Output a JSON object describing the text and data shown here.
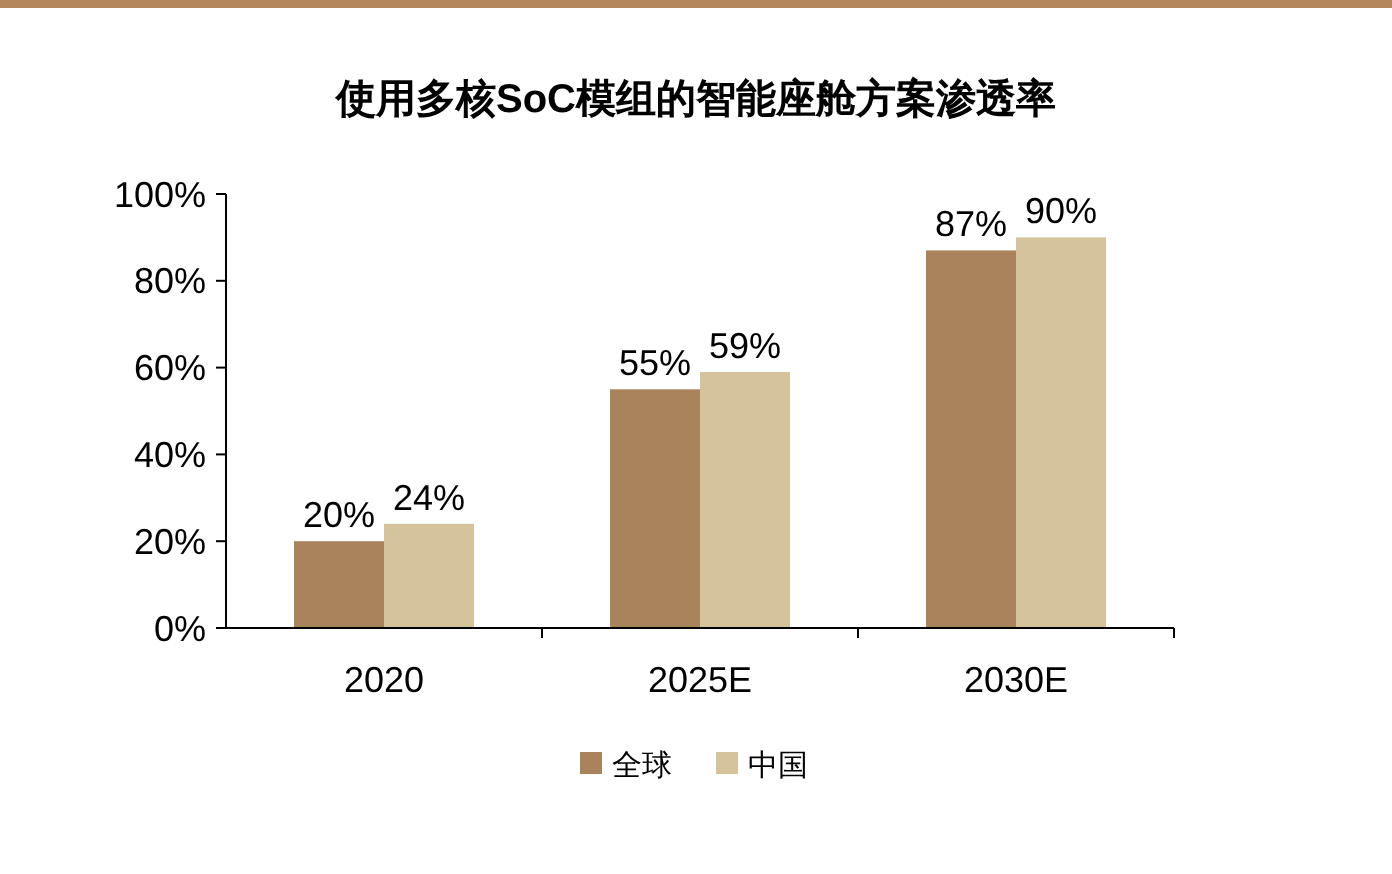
{
  "chart_data": {
    "type": "bar",
    "title": "使用多核SoC模组的智能座舱方案渗透率",
    "categories": [
      "2020",
      "2025E",
      "2030E"
    ],
    "series": [
      {
        "name": "全球",
        "color": "#a8835c",
        "values": [
          20,
          55,
          87
        ],
        "value_labels": [
          "20%",
          "55%",
          "87%"
        ]
      },
      {
        "name": "中国",
        "color": "#d5c49b",
        "values": [
          24,
          59,
          90
        ],
        "value_labels": [
          "24%",
          "59%",
          "90%"
        ]
      }
    ],
    "ylim": [
      0,
      100
    ],
    "yticks": [
      {
        "value": 0,
        "label": "0%"
      },
      {
        "value": 20,
        "label": "20%"
      },
      {
        "value": 40,
        "label": "40%"
      },
      {
        "value": 60,
        "label": "60%"
      },
      {
        "value": 80,
        "label": "80%"
      },
      {
        "value": 100,
        "label": "100%"
      }
    ],
    "legend": "bottom",
    "grid": false
  }
}
